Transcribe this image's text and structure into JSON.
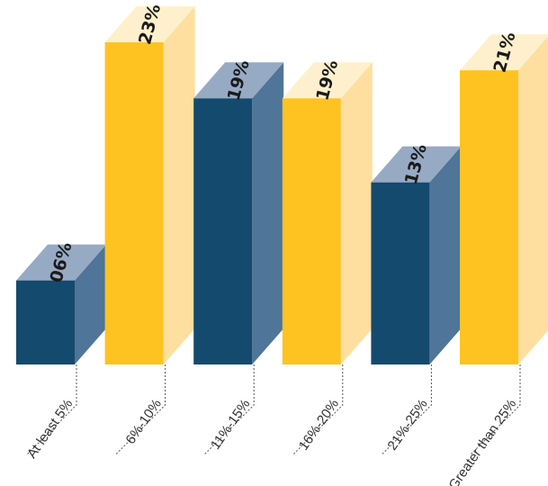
{
  "chart_data": {
    "type": "bar",
    "categories": [
      "At least 5%",
      "6%-10%",
      "11%-15%",
      "16%-20%",
      "21%-25%",
      "Greater than 25%"
    ],
    "values": [
      6,
      23,
      19,
      19,
      13,
      21
    ],
    "labels": [
      "06%",
      "23%",
      "19%",
      "19%",
      "13%",
      "21%"
    ],
    "ylim": [
      0,
      23
    ],
    "grid": false,
    "legend": "none",
    "colors": {
      "navy_front": "#144a6e",
      "navy_side": "#4f7599",
      "navy_top": "#97aac4",
      "gold_front": "#fec321",
      "gold_side": "#fedf9f",
      "gold_top": "#fef0cc"
    },
    "bar_color_pattern": [
      "navy",
      "gold",
      "navy",
      "gold",
      "navy",
      "gold"
    ]
  }
}
